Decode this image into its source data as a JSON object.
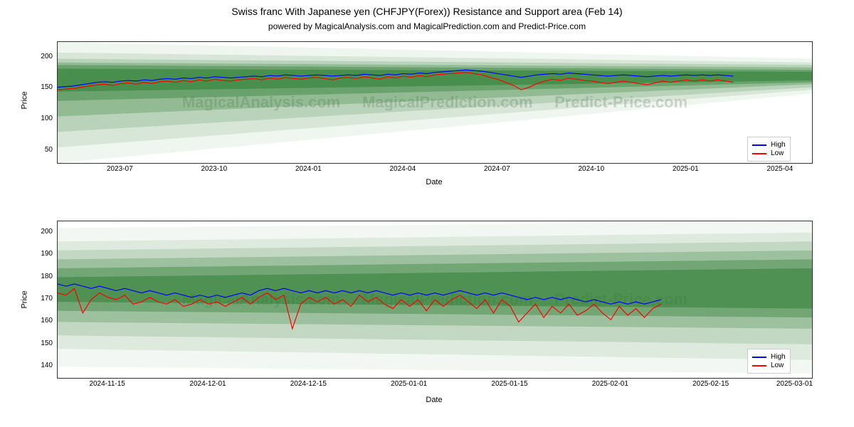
{
  "title": "Swiss franc With Japanese yen (CHFJPY(Forex)) Resistance and Support area (Feb 14)",
  "subtitle": "powered by MagicalAnalysis.com and MagicalPrediction.com and Predict-Price.com",
  "title_fontsize": 14,
  "subtitle_fontsize": 12,
  "background_color": "#ffffff",
  "watermark_text": "MagicalAnalysis.com     MagicalPrediction.com     Predict-Price.com",
  "watermark_color": "#e2e2e2",
  "legend": {
    "items": [
      {
        "label": "High",
        "color": "#0000ff"
      },
      {
        "label": "Low",
        "color": "#ff0000"
      }
    ]
  },
  "chart_top": {
    "type": "line",
    "xlabel": "Date",
    "ylabel": "Price",
    "ylim": [
      30,
      225
    ],
    "yticks": [
      50,
      100,
      150,
      200
    ],
    "xlim_idx": [
      0,
      96
    ],
    "xticks": [
      {
        "idx": 8,
        "label": "2023-07"
      },
      {
        "idx": 20,
        "label": "2023-10"
      },
      {
        "idx": 32,
        "label": "2024-01"
      },
      {
        "idx": 44,
        "label": "2024-04"
      },
      {
        "idx": 56,
        "label": "2024-07"
      },
      {
        "idx": 68,
        "label": "2024-10"
      },
      {
        "idx": 80,
        "label": "2025-01"
      },
      {
        "idx": 92,
        "label": "2025-04"
      }
    ],
    "fan_bands": [
      {
        "y0_start": 30,
        "y0_end": 142,
        "y1_start": 225,
        "y1_end": 198,
        "color": "#2e7d32",
        "opacity": 0.08
      },
      {
        "y0_start": 55,
        "y0_end": 148,
        "y1_start": 208,
        "y1_end": 192,
        "color": "#2e7d32",
        "opacity": 0.12
      },
      {
        "y0_start": 80,
        "y0_end": 152,
        "y1_start": 198,
        "y1_end": 188,
        "color": "#2e7d32",
        "opacity": 0.18
      },
      {
        "y0_start": 105,
        "y0_end": 157,
        "y1_start": 192,
        "y1_end": 184,
        "color": "#2e7d32",
        "opacity": 0.28
      },
      {
        "y0_start": 130,
        "y0_end": 160,
        "y1_start": 188,
        "y1_end": 180,
        "color": "#2e7d32",
        "opacity": 0.4
      },
      {
        "y0_start": 145,
        "y0_end": 163,
        "y1_start": 182,
        "y1_end": 177,
        "color": "#2e7d32",
        "opacity": 0.55
      }
    ],
    "line_high_color": "#0000ff",
    "line_low_color": "#ff0000",
    "line_width": 1.2,
    "high": [
      152,
      153,
      154,
      156,
      158,
      160,
      161,
      160,
      162,
      163,
      162,
      164,
      163,
      165,
      166,
      165,
      167,
      166,
      168,
      167,
      169,
      168,
      167,
      168,
      169,
      170,
      169,
      171,
      170,
      172,
      171,
      170,
      171,
      172,
      171,
      170,
      171,
      172,
      171,
      173,
      172,
      171,
      173,
      172,
      174,
      173,
      175,
      174,
      176,
      177,
      178,
      179,
      180,
      179,
      178,
      176,
      174,
      172,
      170,
      168,
      170,
      172,
      173,
      174,
      173,
      175,
      174,
      173,
      172,
      171,
      170,
      171,
      172,
      171,
      170,
      169,
      170,
      171,
      170,
      171,
      172,
      171,
      172,
      171,
      172,
      171,
      170
    ],
    "low": [
      148,
      149,
      150,
      152,
      154,
      156,
      157,
      155,
      158,
      159,
      157,
      160,
      158,
      161,
      162,
      160,
      163,
      161,
      164,
      162,
      165,
      163,
      162,
      164,
      165,
      166,
      164,
      167,
      165,
      168,
      166,
      165,
      167,
      168,
      166,
      164,
      167,
      168,
      166,
      169,
      167,
      165,
      169,
      167,
      170,
      168,
      171,
      169,
      172,
      173,
      174,
      175,
      176,
      174,
      172,
      168,
      165,
      160,
      155,
      148,
      152,
      158,
      162,
      165,
      163,
      167,
      165,
      163,
      162,
      160,
      158,
      160,
      162,
      160,
      158,
      156,
      159,
      162,
      160,
      162,
      164,
      162,
      164,
      162,
      164,
      162,
      160
    ]
  },
  "chart_bottom": {
    "type": "line",
    "xlabel": "Date",
    "ylabel": "Price",
    "ylim": [
      135,
      205
    ],
    "yticks": [
      140,
      150,
      160,
      170,
      180,
      190,
      200
    ],
    "xlim_idx": [
      0,
      90
    ],
    "xticks": [
      {
        "idx": 6,
        "label": "2024-11-15"
      },
      {
        "idx": 18,
        "label": "2024-12-01"
      },
      {
        "idx": 30,
        "label": "2024-12-15"
      },
      {
        "idx": 42,
        "label": "2025-01-01"
      },
      {
        "idx": 54,
        "label": "2025-01-15"
      },
      {
        "idx": 66,
        "label": "2025-02-01"
      },
      {
        "idx": 78,
        "label": "2025-02-15"
      },
      {
        "idx": 88,
        "label": "2025-03-01"
      }
    ],
    "fan_bands": [
      {
        "y0_start": 140,
        "y0_end": 137,
        "y1_start": 202,
        "y1_end": 205,
        "color": "#2e7d32",
        "opacity": 0.06
      },
      {
        "y0_start": 148,
        "y0_end": 143,
        "y1_start": 196,
        "y1_end": 200,
        "color": "#2e7d32",
        "opacity": 0.1
      },
      {
        "y0_start": 154,
        "y0_end": 150,
        "y1_start": 192,
        "y1_end": 196,
        "color": "#2e7d32",
        "opacity": 0.16
      },
      {
        "y0_start": 160,
        "y0_end": 157,
        "y1_start": 188,
        "y1_end": 192,
        "color": "#2e7d32",
        "opacity": 0.25
      },
      {
        "y0_start": 165,
        "y0_end": 162,
        "y1_start": 184,
        "y1_end": 188,
        "color": "#2e7d32",
        "opacity": 0.38
      },
      {
        "y0_start": 169,
        "y0_end": 166,
        "y1_start": 180,
        "y1_end": 184,
        "color": "#2e7d32",
        "opacity": 0.52
      }
    ],
    "line_high_color": "#0000ff",
    "line_low_color": "#ff0000",
    "line_width": 1.2,
    "high": [
      177,
      176,
      177,
      176,
      175,
      176,
      175,
      174,
      175,
      174,
      173,
      174,
      173,
      172,
      173,
      172,
      171,
      172,
      171,
      172,
      171,
      172,
      173,
      172,
      174,
      175,
      174,
      175,
      174,
      173,
      174,
      173,
      174,
      173,
      174,
      173,
      174,
      173,
      174,
      173,
      172,
      173,
      172,
      173,
      172,
      173,
      172,
      173,
      174,
      173,
      172,
      173,
      172,
      173,
      172,
      171,
      170,
      171,
      170,
      171,
      170,
      171,
      170,
      169,
      170,
      169,
      168,
      169,
      168,
      169,
      168,
      169,
      170
    ],
    "low": [
      173,
      172,
      175,
      164,
      170,
      173,
      171,
      170,
      172,
      168,
      169,
      171,
      169,
      168,
      170,
      167,
      168,
      170,
      168,
      169,
      167,
      169,
      171,
      168,
      171,
      173,
      170,
      172,
      157,
      168,
      171,
      169,
      171,
      168,
      170,
      167,
      172,
      169,
      171,
      168,
      166,
      170,
      167,
      170,
      165,
      170,
      167,
      170,
      172,
      169,
      166,
      170,
      164,
      170,
      167,
      160,
      164,
      168,
      162,
      167,
      164,
      168,
      163,
      165,
      168,
      164,
      161,
      167,
      163,
      166,
      162,
      166,
      168
    ]
  }
}
